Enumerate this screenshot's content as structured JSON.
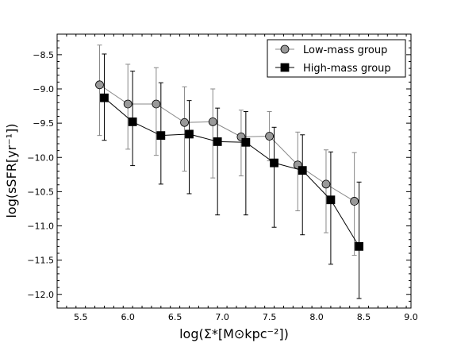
{
  "chart_data": {
    "type": "line",
    "xlabel": "log(Σ*[M⊙kpc⁻²])",
    "ylabel": "log(sSFR[yr⁻¹])",
    "xlim": [
      5.25,
      9.0
    ],
    "ylim": [
      -12.2,
      -8.2
    ],
    "x_ticks": [
      5.5,
      6.0,
      6.5,
      7.0,
      7.5,
      8.0,
      8.5,
      9.0
    ],
    "y_ticks": [
      -12.0,
      -11.5,
      -11.0,
      -10.5,
      -10.0,
      -9.5,
      -9.0,
      -8.5
    ],
    "x_tick_labels": [
      "5.5",
      "6.0",
      "6.5",
      "7.0",
      "7.5",
      "8.0",
      "8.5",
      "9.0"
    ],
    "y_tick_labels": [
      "−12.0",
      "−11.5",
      "−11.0",
      "−10.5",
      "−10.0",
      "−9.5",
      "−9.0",
      "−8.5"
    ],
    "grid": false,
    "legend_position": "top-right",
    "series": [
      {
        "name": "Low-mass group",
        "color": "#888888",
        "marker": "circle",
        "x": [
          5.7,
          6.0,
          6.3,
          6.6,
          6.9,
          7.2,
          7.5,
          7.8,
          8.1,
          8.4
        ],
        "y": [
          -8.94,
          -9.22,
          -9.22,
          -9.49,
          -9.48,
          -9.7,
          -9.69,
          -10.11,
          -10.39,
          -10.64
        ],
        "y_low": [
          -9.68,
          -9.88,
          -9.97,
          -10.2,
          -10.3,
          -10.27,
          -10.05,
          -10.78,
          -11.1,
          -11.43
        ],
        "y_high": [
          -8.36,
          -8.64,
          -8.69,
          -8.97,
          -9.0,
          -9.31,
          -9.33,
          -9.63,
          -9.89,
          -9.93
        ]
      },
      {
        "name": "High-mass group",
        "color": "#000000",
        "marker": "square",
        "x": [
          5.75,
          6.05,
          6.35,
          6.65,
          6.95,
          7.25,
          7.55,
          7.85,
          8.15,
          8.45
        ],
        "y": [
          -9.13,
          -9.48,
          -9.68,
          -9.66,
          -9.77,
          -9.78,
          -10.08,
          -10.19,
          -10.62,
          -11.3
        ],
        "y_low": [
          -9.75,
          -10.12,
          -10.39,
          -10.53,
          -10.84,
          -10.84,
          -11.02,
          -11.13,
          -11.56,
          -12.06
        ],
        "y_high": [
          -8.49,
          -8.74,
          -8.91,
          -9.17,
          -9.28,
          -9.33,
          -9.56,
          -9.67,
          -9.92,
          -10.36
        ]
      }
    ]
  }
}
